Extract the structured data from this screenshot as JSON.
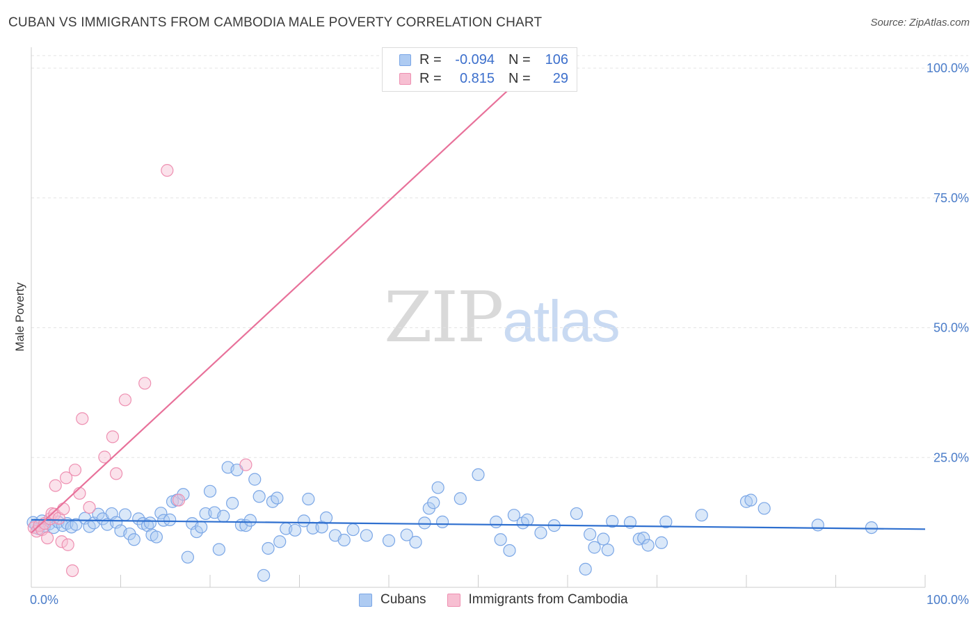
{
  "header": {
    "title": "CUBAN VS IMMIGRANTS FROM CAMBODIA MALE POVERTY CORRELATION CHART",
    "source": "Source: ZipAtlas.com"
  },
  "watermark": {
    "zip": "ZIP",
    "atlas": "atlas"
  },
  "legend": {
    "rows": [
      {
        "r_label": "R =",
        "r_value": "-0.094",
        "n_label": "N =",
        "n_value": "106",
        "color": "#aecbf2",
        "border": "#7aa6e6"
      },
      {
        "r_label": "R =",
        "r_value": "0.815",
        "n_label": "N =",
        "n_value": "29",
        "color": "#f7bfd2",
        "border": "#ee8fb1"
      }
    ],
    "bottom": [
      {
        "label": "Cubans",
        "color": "#aecbf2",
        "border": "#7aa6e6"
      },
      {
        "label": "Immigrants from Cambodia",
        "color": "#f7bfd2",
        "border": "#ee8fb1"
      }
    ]
  },
  "chart_data": {
    "type": "scatter",
    "title": "CUBAN VS IMMIGRANTS FROM CAMBODIA MALE POVERTY CORRELATION CHART",
    "xlabel": "",
    "ylabel": "Male Poverty",
    "xlim": [
      0,
      100
    ],
    "ylim": [
      0,
      100
    ],
    "x_tick_labels": [
      "0.0%",
      "100.0%"
    ],
    "y_ticks": [
      25,
      50,
      75,
      100
    ],
    "y_tick_labels": [
      "25.0%",
      "50.0%",
      "75.0%",
      "100.0%"
    ],
    "grid": true,
    "legend_position": "top-center",
    "colors": {
      "cubans": "#7aa6e6",
      "cubans_line": "#2e6fcf",
      "cambodia": "#ee8fb1",
      "cambodia_line": "#e8719a"
    },
    "series": [
      {
        "name": "Cubans",
        "trend": {
          "x": [
            0,
            100
          ],
          "y": [
            13.0,
            11.2
          ]
        },
        "points": [
          [
            0.2,
            12.5
          ],
          [
            0.5,
            12
          ],
          [
            0.8,
            11.3
          ],
          [
            1.2,
            12.8
          ],
          [
            1.5,
            11.8
          ],
          [
            2.0,
            12.2
          ],
          [
            2.5,
            11.5
          ],
          [
            3.0,
            12.6
          ],
          [
            3.5,
            11.9
          ],
          [
            4.0,
            12.3
          ],
          [
            4.5,
            11.6
          ],
          [
            5.0,
            12.1
          ],
          [
            6.0,
            13.3
          ],
          [
            6.5,
            11.7
          ],
          [
            7.0,
            12.4
          ],
          [
            7.5,
            14.1
          ],
          [
            8.0,
            13.2
          ],
          [
            8.5,
            12.1
          ],
          [
            9.0,
            14.2
          ],
          [
            9.5,
            12.5
          ],
          [
            10.0,
            10.9
          ],
          [
            10.5,
            14.0
          ],
          [
            11.0,
            10.3
          ],
          [
            11.5,
            9.2
          ],
          [
            12.0,
            13.2
          ],
          [
            12.5,
            12.3
          ],
          [
            13.0,
            11.9
          ],
          [
            13.3,
            12.4
          ],
          [
            13.5,
            10.1
          ],
          [
            14.0,
            9.7
          ],
          [
            14.5,
            14.3
          ],
          [
            14.8,
            12.9
          ],
          [
            15.5,
            13.0
          ],
          [
            15.8,
            16.5
          ],
          [
            16.3,
            16.8
          ],
          [
            17.0,
            17.9
          ],
          [
            17.5,
            5.8
          ],
          [
            18.0,
            12.3
          ],
          [
            18.5,
            10.7
          ],
          [
            19.0,
            11.6
          ],
          [
            19.5,
            14.2
          ],
          [
            20.0,
            18.5
          ],
          [
            20.5,
            14.4
          ],
          [
            21.0,
            7.3
          ],
          [
            21.5,
            13.7
          ],
          [
            22.0,
            23.1
          ],
          [
            22.5,
            16.2
          ],
          [
            23.0,
            22.6
          ],
          [
            23.5,
            12.0
          ],
          [
            24.0,
            11.9
          ],
          [
            24.5,
            12.9
          ],
          [
            25.0,
            20.8
          ],
          [
            25.5,
            17.5
          ],
          [
            26.0,
            2.3
          ],
          [
            26.5,
            7.5
          ],
          [
            27.0,
            16.5
          ],
          [
            27.5,
            17.2
          ],
          [
            27.8,
            8.8
          ],
          [
            28.5,
            11.3
          ],
          [
            29.5,
            11.0
          ],
          [
            30.5,
            12.8
          ],
          [
            31.0,
            17.0
          ],
          [
            31.5,
            11.4
          ],
          [
            32.5,
            11.6
          ],
          [
            33.0,
            13.4
          ],
          [
            34.0,
            10.0
          ],
          [
            35.0,
            9.1
          ],
          [
            36.0,
            11.1
          ],
          [
            37.5,
            10.0
          ],
          [
            40.0,
            9.0
          ],
          [
            42.0,
            10.1
          ],
          [
            43.0,
            8.7
          ],
          [
            44.0,
            12.4
          ],
          [
            44.5,
            15.2
          ],
          [
            45.0,
            16.3
          ],
          [
            45.5,
            19.2
          ],
          [
            46.0,
            12.6
          ],
          [
            48.0,
            17.1
          ],
          [
            50.0,
            21.7
          ],
          [
            52.0,
            12.6
          ],
          [
            52.5,
            9.2
          ],
          [
            53.5,
            7.1
          ],
          [
            54.0,
            13.9
          ],
          [
            55.0,
            12.4
          ],
          [
            55.5,
            13.0
          ],
          [
            57.0,
            10.5
          ],
          [
            58.5,
            11.9
          ],
          [
            61.0,
            14.2
          ],
          [
            62.0,
            3.5
          ],
          [
            62.5,
            10.2
          ],
          [
            63.0,
            7.7
          ],
          [
            64.0,
            9.3
          ],
          [
            64.5,
            7.2
          ],
          [
            65.0,
            12.7
          ],
          [
            67.0,
            12.5
          ],
          [
            68.0,
            9.3
          ],
          [
            68.5,
            9.5
          ],
          [
            69.0,
            8.1
          ],
          [
            70.5,
            8.6
          ],
          [
            71.0,
            12.6
          ],
          [
            75.0,
            13.9
          ],
          [
            80.0,
            16.5
          ],
          [
            80.5,
            16.8
          ],
          [
            82.0,
            15.2
          ],
          [
            88.0,
            12.0
          ],
          [
            94.0,
            11.5
          ]
        ]
      },
      {
        "name": "Immigrants from Cambodia",
        "trend": {
          "x": [
            0,
            56
          ],
          "y": [
            10.5,
            100.0
          ]
        },
        "points": [
          [
            0.3,
            11.5
          ],
          [
            0.6,
            10.8
          ],
          [
            0.9,
            11.9
          ],
          [
            1.2,
            11.1
          ],
          [
            1.5,
            12.3
          ],
          [
            1.8,
            9.5
          ],
          [
            2.1,
            13.2
          ],
          [
            2.3,
            14.2
          ],
          [
            2.6,
            14.1
          ],
          [
            2.7,
            19.6
          ],
          [
            3.1,
            13.3
          ],
          [
            3.4,
            8.8
          ],
          [
            3.6,
            15.1
          ],
          [
            3.9,
            21.1
          ],
          [
            4.1,
            8.2
          ],
          [
            4.6,
            3.2
          ],
          [
            4.9,
            22.6
          ],
          [
            5.4,
            18.1
          ],
          [
            5.7,
            32.5
          ],
          [
            6.5,
            15.4
          ],
          [
            8.2,
            25.1
          ],
          [
            9.1,
            29.0
          ],
          [
            9.5,
            21.9
          ],
          [
            10.5,
            36.1
          ],
          [
            12.7,
            39.3
          ],
          [
            15.2,
            80.3
          ],
          [
            16.5,
            16.8
          ],
          [
            24.0,
            23.6
          ],
          [
            54.0,
            100.0
          ]
        ]
      }
    ]
  }
}
